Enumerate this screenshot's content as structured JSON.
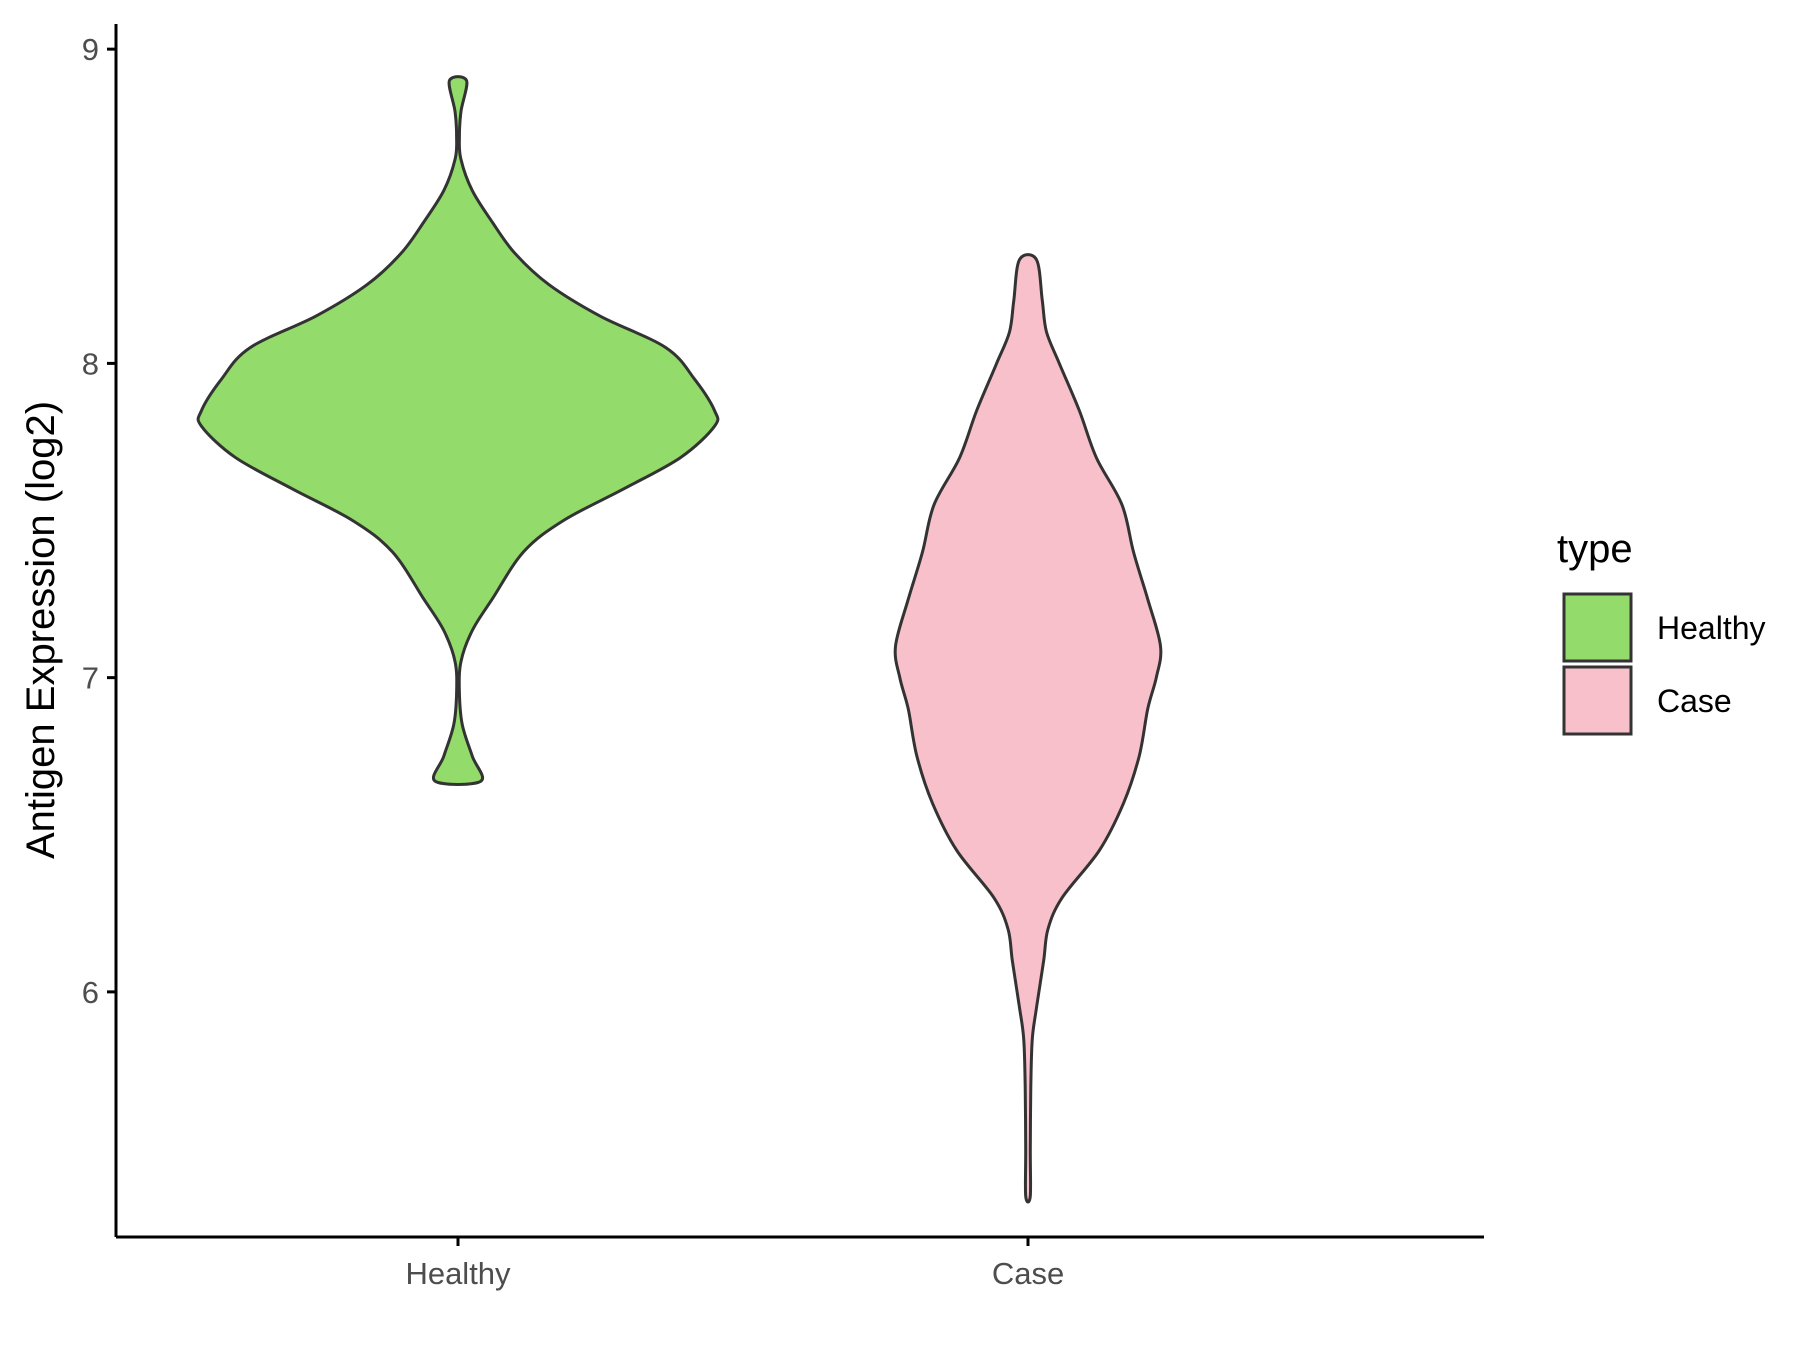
{
  "chart_data": {
    "type": "violin",
    "title": "",
    "xlabel": "",
    "ylabel": "Antigen Expression (log2)",
    "ylim": [
      5.22,
      9.08
    ],
    "y_ticks": [
      6,
      7,
      8,
      9
    ],
    "y_tick_labels": [
      "6",
      "7",
      "8",
      "9"
    ],
    "categories": [
      "Healthy",
      "Case"
    ],
    "grid": false,
    "legend": {
      "title": "type",
      "position": "right",
      "entries": [
        {
          "label": "Healthy",
          "color": "#93dc6b"
        },
        {
          "label": "Case",
          "color": "#f7c0cb"
        }
      ]
    },
    "series": [
      {
        "name": "Healthy",
        "color": "#93dc6b",
        "y_min": 6.67,
        "y_max": 8.9,
        "max_halfwidth": 0.9,
        "density_profile": [
          [
            6.67,
            0.08
          ],
          [
            6.75,
            0.05
          ],
          [
            6.85,
            0.015
          ],
          [
            6.95,
            0.005
          ],
          [
            7.05,
            0.01
          ],
          [
            7.15,
            0.05
          ],
          [
            7.25,
            0.12
          ],
          [
            7.4,
            0.23
          ],
          [
            7.5,
            0.37
          ],
          [
            7.6,
            0.58
          ],
          [
            7.7,
            0.78
          ],
          [
            7.8,
            0.9
          ],
          [
            7.85,
            0.9
          ],
          [
            7.95,
            0.83
          ],
          [
            8.05,
            0.73
          ],
          [
            8.15,
            0.5
          ],
          [
            8.25,
            0.32
          ],
          [
            8.35,
            0.2
          ],
          [
            8.45,
            0.12
          ],
          [
            8.55,
            0.05
          ],
          [
            8.65,
            0.01
          ],
          [
            8.72,
            0.005
          ],
          [
            8.8,
            0.01
          ],
          [
            8.9,
            0.03
          ]
        ]
      },
      {
        "name": "Case",
        "color": "#f7c0cb",
        "y_min": 5.35,
        "y_max": 8.33,
        "max_halfwidth": 0.465,
        "density_profile": [
          [
            5.35,
            0.008
          ],
          [
            5.5,
            0.008
          ],
          [
            5.7,
            0.01
          ],
          [
            5.85,
            0.015
          ],
          [
            5.95,
            0.03
          ],
          [
            6.1,
            0.055
          ],
          [
            6.2,
            0.07
          ],
          [
            6.3,
            0.12
          ],
          [
            6.45,
            0.25
          ],
          [
            6.6,
            0.335
          ],
          [
            6.75,
            0.39
          ],
          [
            6.9,
            0.42
          ],
          [
            7.0,
            0.45
          ],
          [
            7.1,
            0.465
          ],
          [
            7.25,
            0.42
          ],
          [
            7.4,
            0.37
          ],
          [
            7.55,
            0.33
          ],
          [
            7.7,
            0.24
          ],
          [
            7.85,
            0.18
          ],
          [
            8.0,
            0.11
          ],
          [
            8.1,
            0.065
          ],
          [
            8.2,
            0.05
          ],
          [
            8.33,
            0.03
          ]
        ]
      }
    ]
  }
}
